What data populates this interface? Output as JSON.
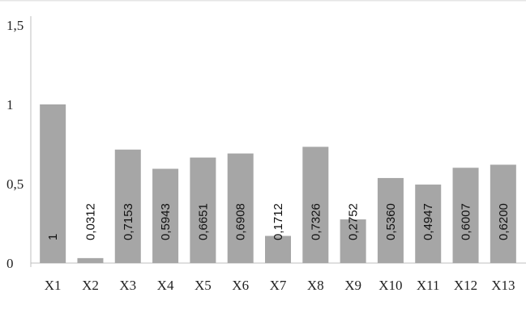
{
  "chart_data": {
    "type": "bar",
    "title": "",
    "xlabel": "",
    "ylabel": "",
    "categories": [
      "X1",
      "X2",
      "X3",
      "X4",
      "X5",
      "X6",
      "X7",
      "X8",
      "X9",
      "X10",
      "X11",
      "X12",
      "X13"
    ],
    "values": [
      1,
      0.0312,
      0.7153,
      0.5943,
      0.6651,
      0.6908,
      0.1712,
      0.7326,
      0.2752,
      0.536,
      0.4947,
      0.6007,
      0.62
    ],
    "value_labels": [
      "1",
      "0,0312",
      "0,7153",
      "0,5943",
      "0,6651",
      "0,6908",
      "0,1712",
      "0,7326",
      "0,2752",
      "0,5360",
      "0,4947",
      "0,6007",
      "0,6200"
    ],
    "ylim": [
      0,
      1.5
    ],
    "y_ticks": [
      {
        "value": 0,
        "label": "0"
      },
      {
        "value": 0.5,
        "label": "0,5"
      },
      {
        "value": 1,
        "label": "1"
      },
      {
        "value": 1.5,
        "label": "1,5"
      }
    ],
    "grid": false,
    "legend": "none",
    "bar_color": "#a6a6a6",
    "axis_color": "#bfbfbf"
  }
}
